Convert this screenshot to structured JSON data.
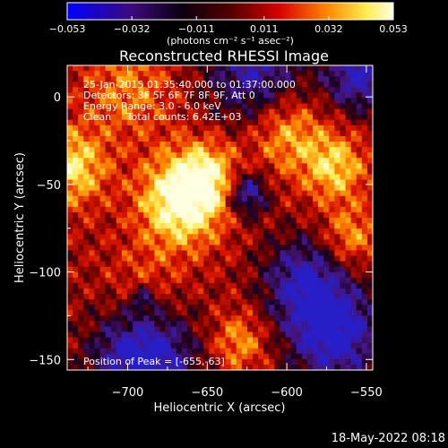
{
  "chart_data": {
    "type": "heatmap",
    "title": "Reconstructed RHESSI Image",
    "xlabel": "Heliocentric X (arcsec)",
    "ylabel": "Heliocentric Y (arcsec)",
    "xlim": [
      -738,
      -546
    ],
    "ylim": [
      -156,
      18
    ],
    "x_ticks": [
      -700,
      -650,
      -600,
      -550
    ],
    "x_tick_labels": [
      "−700",
      "−650",
      "−600",
      "−550"
    ],
    "y_ticks": [
      0,
      -50,
      -100,
      -150
    ],
    "y_tick_labels": [
      "0",
      "−50",
      "−100",
      "−150"
    ],
    "colorbar": {
      "min": -0.053,
      "max": 0.053,
      "ticks": [
        -0.053,
        -0.032,
        -0.011,
        0.011,
        0.032,
        0.053
      ],
      "tick_labels": [
        "−0.053",
        "−0.032",
        "−0.011",
        "0.011",
        "0.032",
        "0.053"
      ],
      "unit_label": "(photons cm⁻² s⁻¹ asec⁻²)",
      "colors": [
        "#0000ff",
        "#3c0a7a",
        "#000000",
        "#7a0000",
        "#ff0000",
        "#ffff66",
        "#ffffff"
      ]
    },
    "annotations": [
      "25-Jan-2015 01:35:40.000 to 01:37:00.000",
      "Detectors: 3F 5F 6F 7F 8F 9F, Att 0",
      "Energy Range: 3.0 - 6.0 keV",
      "Clean     Total counts: 6.42E+03"
    ],
    "peak_text": "Position of Peak = [-655,-63]",
    "peak": [
      -655,
      -63
    ]
  },
  "footer": {
    "date": "18-May-2022 08:18"
  }
}
